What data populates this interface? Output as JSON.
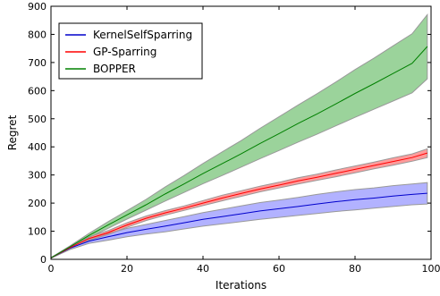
{
  "chart_data": {
    "type": "line",
    "xlabel": "Iterations",
    "ylabel": "Regret",
    "xlim": [
      0,
      100
    ],
    "ylim": [
      0,
      900
    ],
    "xticks": [
      0,
      20,
      40,
      60,
      80,
      100
    ],
    "yticks": [
      0,
      100,
      200,
      300,
      400,
      500,
      600,
      700,
      800,
      900
    ],
    "grid": false,
    "legend_position": "top-left",
    "x": [
      0,
      5,
      10,
      15,
      20,
      25,
      30,
      35,
      40,
      45,
      50,
      55,
      60,
      65,
      70,
      75,
      80,
      85,
      90,
      95,
      99
    ],
    "series": [
      {
        "name": "KernelSelfSparring",
        "color": "#0000cc",
        "band_color": "#8888ff",
        "values": [
          5,
          40,
          65,
          80,
          95,
          107,
          118,
          130,
          142,
          152,
          162,
          172,
          180,
          188,
          197,
          205,
          212,
          218,
          225,
          231,
          235
        ],
        "lower": [
          4,
          35,
          57,
          68,
          80,
          90,
          98,
          108,
          118,
          126,
          134,
          142,
          149,
          156,
          163,
          170,
          176,
          182,
          188,
          194,
          197
        ],
        "upper": [
          6,
          45,
          73,
          92,
          110,
          124,
          138,
          152,
          166,
          178,
          190,
          202,
          211,
          220,
          231,
          240,
          248,
          254,
          262,
          268,
          273
        ]
      },
      {
        "name": "GP-Sparring",
        "color": "#ff0000",
        "band_color": "#ff6666",
        "values": [
          5,
          42,
          74,
          95,
          122,
          146,
          165,
          182,
          200,
          218,
          234,
          250,
          264,
          279,
          292,
          306,
          320,
          334,
          348,
          362,
          378
        ],
        "lower": [
          4,
          38,
          68,
          88,
          114,
          138,
          157,
          174,
          191,
          208,
          224,
          240,
          254,
          268,
          281,
          294,
          308,
          322,
          335,
          349,
          362
        ],
        "upper": [
          6,
          46,
          80,
          102,
          130,
          154,
          173,
          190,
          209,
          228,
          244,
          260,
          274,
          290,
          303,
          318,
          332,
          346,
          361,
          375,
          393
        ]
      },
      {
        "name": "BOPPER",
        "color": "#008000",
        "band_color": "#66bb66",
        "values": [
          5,
          45,
          85,
          122,
          158,
          194,
          232,
          268,
          305,
          340,
          375,
          412,
          447,
          483,
          517,
          553,
          590,
          625,
          661,
          697,
          757
        ],
        "lower": [
          4,
          42,
          78,
          110,
          143,
          175,
          207,
          238,
          269,
          298,
          328,
          358,
          387,
          417,
          445,
          475,
          505,
          534,
          563,
          592,
          642
        ],
        "upper": [
          6,
          48,
          92,
          134,
          173,
          213,
          257,
          298,
          341,
          382,
          422,
          466,
          507,
          549,
          589,
          631,
          675,
          716,
          759,
          802,
          870
        ]
      }
    ]
  }
}
